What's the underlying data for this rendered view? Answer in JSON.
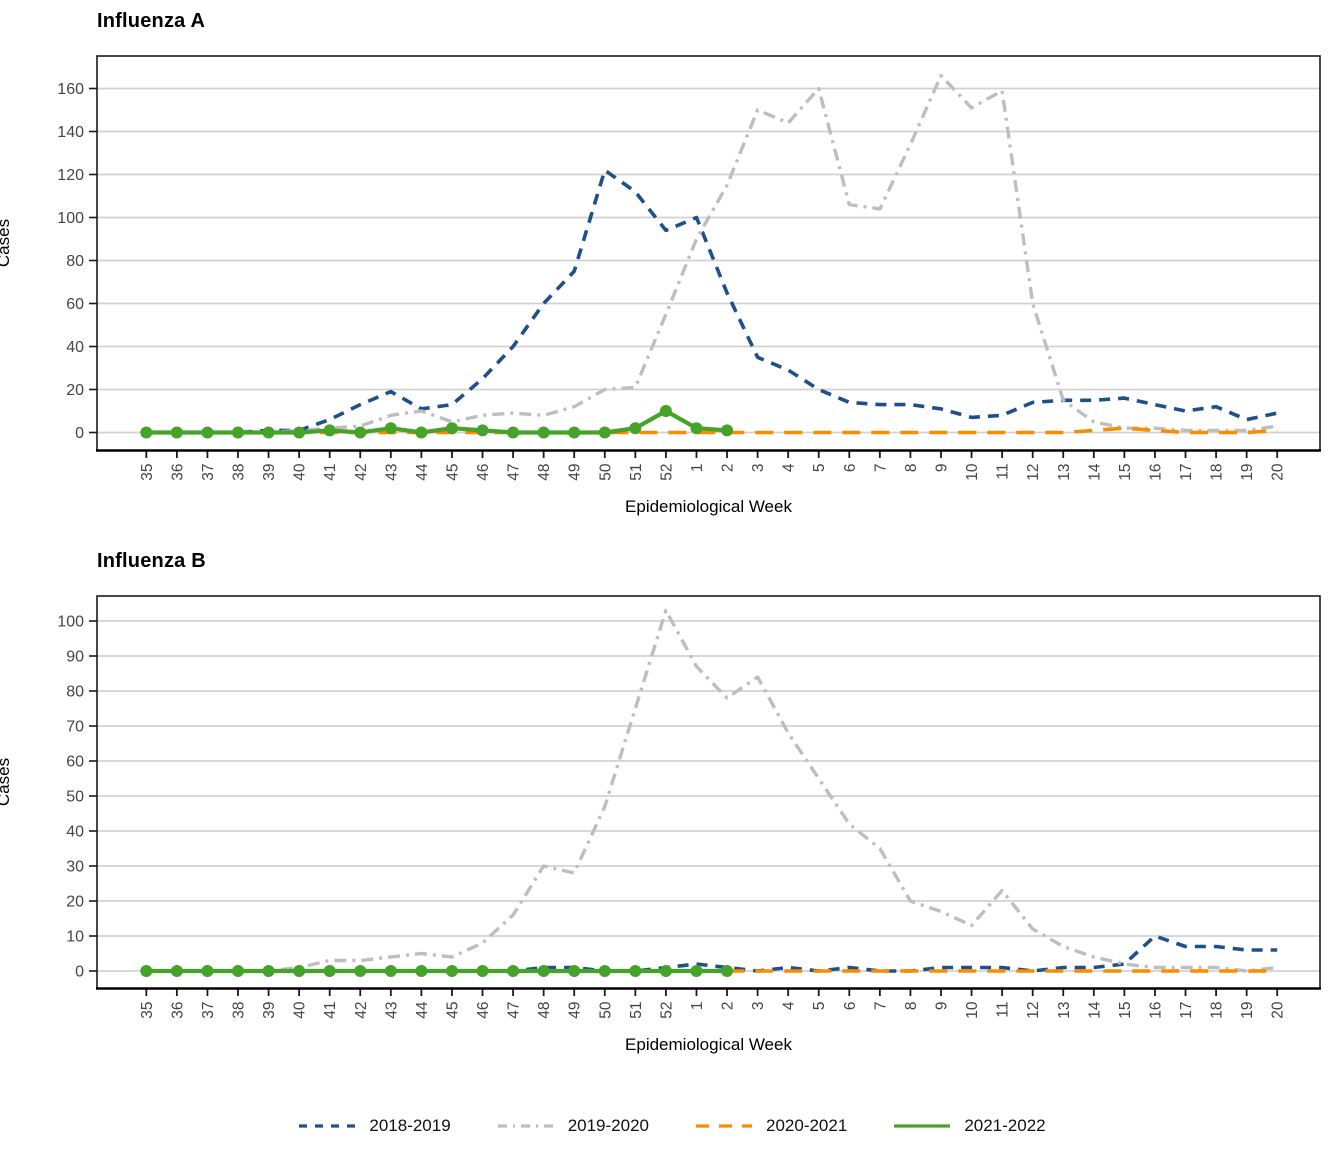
{
  "colors": {
    "season_2018_2019": "#20508C",
    "season_2019_2020": "#BEBEBE",
    "season_2020_2021": "#FB8C00",
    "season_2021_2022": "#46A32A",
    "gridline": "#D2D2D2",
    "axis_text": "#454545",
    "panel_border": "#1A1A1A"
  },
  "legend": {
    "position": "bottom",
    "items": [
      {
        "label": "2018-2019",
        "linetype": "dashed"
      },
      {
        "label": "2019-2020",
        "linetype": "longdash_dot"
      },
      {
        "label": "2020-2021",
        "linetype": "longdash"
      },
      {
        "label": "2021-2022",
        "linetype": "solid"
      }
    ]
  },
  "chart_data": [
    {
      "type": "line",
      "title": "Influenza A",
      "xlabel": "Epidemiological Week",
      "ylabel": "Cases",
      "ylim": [
        0,
        175
      ],
      "yticks": [
        0,
        20,
        40,
        60,
        80,
        100,
        120,
        140,
        160
      ],
      "grid": "horizontal-only",
      "legend_position": "bottom",
      "x_categories": [
        "35",
        "36",
        "37",
        "38",
        "39",
        "40",
        "41",
        "42",
        "43",
        "44",
        "45",
        "46",
        "47",
        "48",
        "49",
        "50",
        "51",
        "52",
        "1",
        "2",
        "3",
        "4",
        "5",
        "6",
        "7",
        "8",
        "9",
        "10",
        "11",
        "12",
        "13",
        "14",
        "15",
        "16",
        "17",
        "18",
        "19",
        "20"
      ],
      "series": [
        {
          "name": "2018-2019",
          "color": "#20508C",
          "linetype": "dashed",
          "marker": false,
          "values": [
            0,
            0,
            0,
            0,
            1,
            1,
            6,
            13,
            19,
            11,
            13,
            25,
            40,
            60,
            75,
            122,
            112,
            94,
            100,
            65,
            35,
            29,
            20,
            14,
            13,
            13,
            11,
            7,
            8,
            14,
            15,
            15,
            16,
            13,
            10,
            12,
            6,
            9
          ]
        },
        {
          "name": "2019-2020",
          "color": "#BEBEBE",
          "linetype": "longdash_dot",
          "marker": false,
          "values": [
            0,
            0,
            0,
            0,
            0,
            1,
            2,
            3,
            8,
            10,
            5,
            8,
            9,
            8,
            12,
            20,
            21,
            55,
            90,
            115,
            150,
            144,
            160,
            106,
            104,
            134,
            166,
            151,
            159,
            60,
            15,
            5,
            2,
            2,
            1,
            1,
            1,
            3
          ]
        },
        {
          "name": "2020-2021",
          "color": "#FB8C00",
          "linetype": "longdash",
          "marker": false,
          "values": [
            0,
            0,
            0,
            0,
            0,
            0,
            0,
            0,
            0,
            0,
            0,
            0,
            0,
            0,
            0,
            0,
            0,
            0,
            0,
            0,
            0,
            0,
            0,
            0,
            0,
            0,
            0,
            0,
            0,
            0,
            0,
            1,
            2,
            1,
            0,
            0,
            0,
            1
          ]
        },
        {
          "name": "2021-2022",
          "color": "#46A32A",
          "linetype": "solid",
          "marker": true,
          "values": [
            0,
            0,
            0,
            0,
            0,
            0,
            1,
            0,
            2,
            0,
            2,
            1,
            0,
            0,
            0,
            0,
            2,
            10,
            2,
            1,
            null,
            null,
            null,
            null,
            null,
            null,
            null,
            null,
            null,
            null,
            null,
            null,
            null,
            null,
            null,
            null,
            null,
            null
          ]
        }
      ]
    },
    {
      "type": "line",
      "title": "Influenza B",
      "xlabel": "Epidemiological Week",
      "ylabel": "Cases",
      "ylim": [
        0,
        107
      ],
      "yticks": [
        0,
        10,
        20,
        30,
        40,
        50,
        60,
        70,
        80,
        90,
        100
      ],
      "grid": "horizontal-only",
      "legend_position": "bottom",
      "x_categories": [
        "35",
        "36",
        "37",
        "38",
        "39",
        "40",
        "41",
        "42",
        "43",
        "44",
        "45",
        "46",
        "47",
        "48",
        "49",
        "50",
        "51",
        "52",
        "1",
        "2",
        "3",
        "4",
        "5",
        "6",
        "7",
        "8",
        "9",
        "10",
        "11",
        "12",
        "13",
        "14",
        "15",
        "16",
        "17",
        "18",
        "19",
        "20"
      ],
      "series": [
        {
          "name": "2018-2019",
          "color": "#20508C",
          "linetype": "dashed",
          "marker": false,
          "values": [
            0,
            0,
            0,
            0,
            0,
            0,
            0,
            0,
            0,
            0,
            0,
            0,
            0,
            1,
            1,
            0,
            0,
            1,
            2,
            1,
            0,
            1,
            0,
            1,
            0,
            0,
            1,
            1,
            1,
            0,
            1,
            1,
            2,
            10,
            7,
            7,
            6,
            6
          ]
        },
        {
          "name": "2019-2020",
          "color": "#BEBEBE",
          "linetype": "longdash_dot",
          "marker": false,
          "values": [
            0,
            0,
            0,
            0,
            0,
            1,
            3,
            3,
            4,
            5,
            4,
            8,
            16,
            30,
            28,
            47,
            75,
            103,
            87,
            78,
            84,
            68,
            55,
            42,
            35,
            20,
            17,
            13,
            23,
            12,
            7,
            4,
            2,
            1,
            1,
            1,
            0,
            1
          ]
        },
        {
          "name": "2020-2021",
          "color": "#FB8C00",
          "linetype": "longdash",
          "marker": false,
          "values": [
            0,
            0,
            0,
            0,
            0,
            0,
            0,
            0,
            0,
            0,
            0,
            0,
            0,
            0,
            0,
            0,
            0,
            0,
            0,
            0,
            0,
            0,
            0,
            0,
            0,
            0,
            0,
            0,
            0,
            0,
            0,
            0,
            0,
            0,
            0,
            0,
            0,
            0
          ]
        },
        {
          "name": "2021-2022",
          "color": "#46A32A",
          "linetype": "solid",
          "marker": true,
          "values": [
            0,
            0,
            0,
            0,
            0,
            0,
            0,
            0,
            0,
            0,
            0,
            0,
            0,
            0,
            0,
            0,
            0,
            0,
            0,
            0,
            null,
            null,
            null,
            null,
            null,
            null,
            null,
            null,
            null,
            null,
            null,
            null,
            null,
            null,
            null,
            null,
            null,
            null
          ]
        }
      ]
    }
  ]
}
